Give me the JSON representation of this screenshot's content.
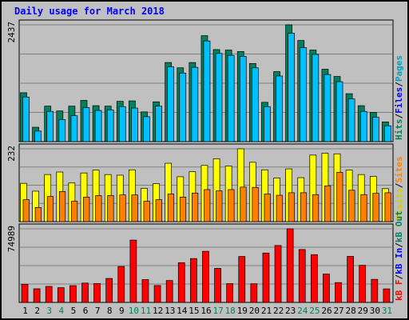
{
  "chart_data": {
    "type": "bar",
    "title": "Daily usage for March 2018",
    "categories": [
      "1",
      "2",
      "3",
      "4",
      "5",
      "6",
      "7",
      "8",
      "9",
      "10",
      "11",
      "12",
      "13",
      "14",
      "15",
      "16",
      "17",
      "18",
      "19",
      "20",
      "21",
      "22",
      "23",
      "24",
      "25",
      "26",
      "27",
      "28",
      "29",
      "30",
      "31"
    ],
    "weekend_days": [
      "3",
      "4",
      "10",
      "11",
      "17",
      "18",
      "24",
      "25",
      "31"
    ],
    "colors": {
      "hits": "#00805c",
      "files": "#00c0ff",
      "pages": "#00a0c0",
      "visits": "#ffff00",
      "sites": "#ff8000",
      "kb": "#ff0000",
      "kb_in": "#0000ff",
      "kb_out": "#00805c",
      "weekday_label": "#000000",
      "weekend_label": "#00805c"
    },
    "panels": [
      {
        "id": "hits-files",
        "max_label": "2437",
        "max": 2437,
        "legend": [
          {
            "text": "Hits",
            "color": "#00805c"
          },
          {
            "text": "/",
            "color": "#000000"
          },
          {
            "text": "Files",
            "color": "#0000ff"
          },
          {
            "text": "/",
            "color": "#000000"
          },
          {
            "text": "Pages",
            "color": "#00a0c0"
          }
        ],
        "series": [
          {
            "name": "Hits",
            "values": [
              1020,
              300,
              740,
              640,
              740,
              860,
              750,
              740,
              840,
              850,
              620,
              830,
              1650,
              1540,
              1650,
              2210,
              1920,
              1910,
              1880,
              1630,
              820,
              1460,
              2437,
              2110,
              1910,
              1510,
              1360,
              1000,
              750,
              610,
              410
            ]
          },
          {
            "name": "Files",
            "values": [
              980,
              270,
              680,
              510,
              590,
              760,
              700,
              710,
              780,
              750,
              570,
              790,
              1610,
              1480,
              1600,
              2150,
              1890,
              1850,
              1830,
              1590,
              780,
              1420,
              2310,
              2010,
              1870,
              1450,
              1300,
              940,
              680,
              560,
              380
            ]
          }
        ]
      },
      {
        "id": "visits-sites",
        "max_label": "232",
        "max": 232,
        "legend": [
          {
            "text": "Visits",
            "color": "#d0d000"
          },
          {
            "text": "/",
            "color": "#000000"
          },
          {
            "text": "Sites",
            "color": "#ff8000"
          }
        ],
        "series": [
          {
            "name": "Visits",
            "values": [
              122,
              97,
              150,
              158,
              123,
              155,
              164,
              150,
              148,
              165,
              106,
              121,
              186,
              143,
              159,
              179,
              200,
              177,
              232,
              189,
              165,
              139,
              168,
              140,
              212,
              218,
              216,
              164,
              150,
              144,
              105
            ]
          },
          {
            "name": "Sites",
            "values": [
              70,
              45,
              80,
              96,
              65,
              78,
              83,
              83,
              85,
              85,
              65,
              70,
              88,
              78,
              91,
              102,
              98,
              102,
              110,
              109,
              88,
              84,
              92,
              92,
              86,
              114,
              157,
              100,
              86,
              90,
              92
            ]
          }
        ]
      },
      {
        "id": "kbytes",
        "max_label": "74989",
        "max": 74989,
        "legend": [
          {
            "text": "kB F",
            "color": "#ff0000"
          },
          {
            "text": "/",
            "color": "#000000"
          },
          {
            "text": "kB In",
            "color": "#0000ff"
          },
          {
            "text": "/",
            "color": "#000000"
          },
          {
            "text": "kB Out",
            "color": "#00805c"
          }
        ],
        "series": [
          {
            "name": "kB F",
            "values": [
              18500,
              13900,
              16300,
              15000,
              17100,
              19700,
              19300,
              24400,
              36600,
              63500,
              23300,
              17200,
              22300,
              40500,
              44700,
              52100,
              34700,
              19100,
              46800,
              19000,
              50300,
              58000,
              74989,
              53900,
              48700,
              28900,
              20200,
              46900,
              37800,
              23500,
              13800
            ]
          }
        ]
      }
    ]
  }
}
